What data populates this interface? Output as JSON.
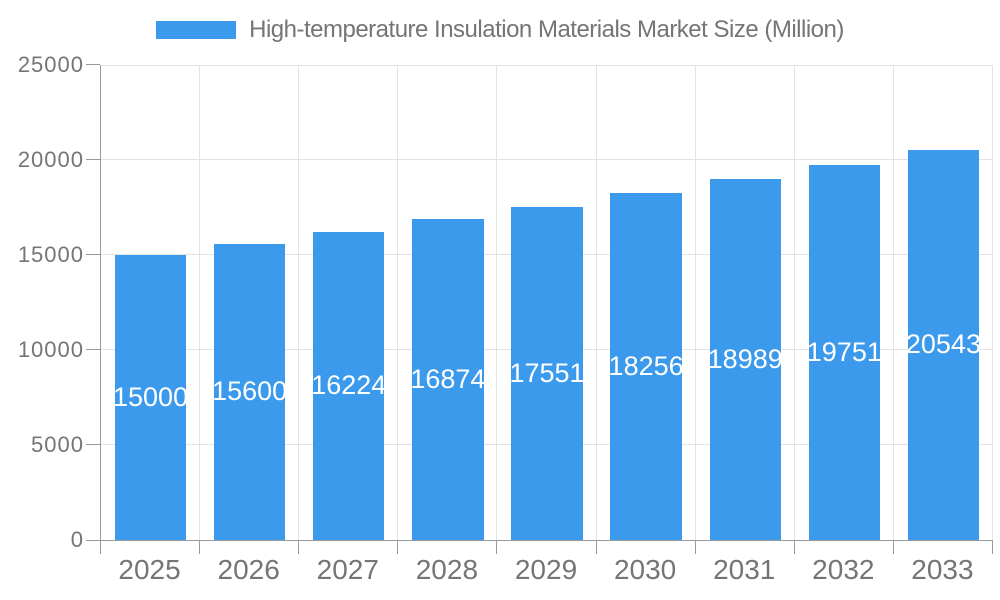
{
  "chart_data": {
    "type": "bar",
    "title": "High-temperature Insulation Materials Market Size (Million)",
    "legend": [
      "High-temperature Insulation Materials Market Size (Million)"
    ],
    "legend_position": "top-center",
    "categories": [
      "2025",
      "2026",
      "2027",
      "2028",
      "2029",
      "2030",
      "2031",
      "2032",
      "2033"
    ],
    "values": [
      15000,
      15600,
      16224,
      16874,
      17551,
      18256,
      18989,
      19751,
      20543
    ],
    "xlabel": "",
    "ylabel": "",
    "ylim": [
      0,
      25000
    ],
    "yticks": [
      0,
      5000,
      10000,
      15000,
      20000,
      25000
    ],
    "grid": true,
    "bar_label_position": "inside-middle",
    "colors": {
      "bar": "#3b9aec",
      "bar_label": "#ffffff",
      "axis": "#999999",
      "gridline": "#e3e3e3",
      "text": "#757575",
      "background": "#ffffff"
    }
  }
}
